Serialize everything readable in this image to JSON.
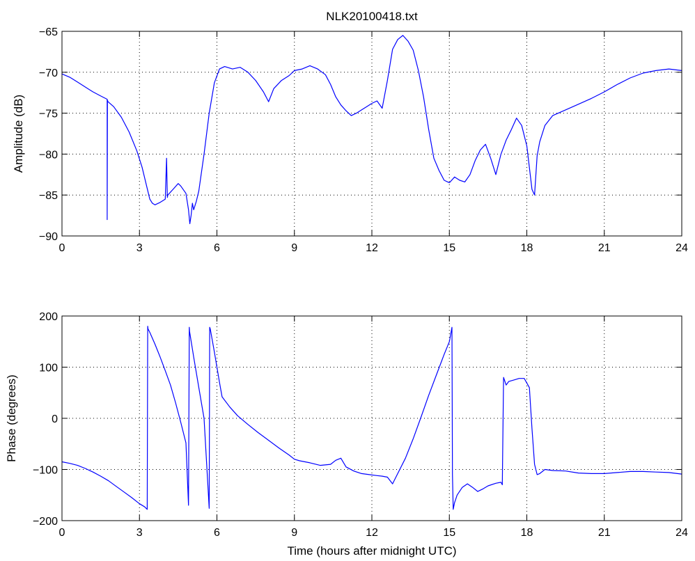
{
  "colors": {
    "series": "#0000ff",
    "axes": "#000000",
    "background": "#ffffff"
  },
  "chart_data": [
    {
      "type": "line",
      "title": "NLK20100418.txt",
      "xlabel": "",
      "ylabel": "Amplitude (dB)",
      "xlim": [
        0,
        24
      ],
      "ylim": [
        -90,
        -65
      ],
      "xticks": [
        0,
        3,
        6,
        9,
        12,
        15,
        18,
        21,
        24
      ],
      "yticks": [
        -90,
        -85,
        -80,
        -75,
        -70,
        -65
      ],
      "grid": true,
      "series": [
        {
          "x": [
            0,
            0.3,
            0.6,
            0.9,
            1.2,
            1.5,
            1.75,
            1.75,
            1.76,
            1.78,
            2.0,
            2.3,
            2.6,
            2.9,
            3.1,
            3.3,
            3.4,
            3.5,
            3.6,
            3.8,
            4.0,
            4.05,
            4.08,
            4.1,
            4.3,
            4.5,
            4.6,
            4.8,
            4.9,
            4.95,
            5.0,
            5.05,
            5.1,
            5.2,
            5.3,
            5.5,
            5.7,
            5.9,
            6.1,
            6.3,
            6.6,
            6.9,
            7.2,
            7.5,
            7.8,
            8.0,
            8.2,
            8.5,
            8.8,
            9.0,
            9.3,
            9.6,
            9.9,
            10.2,
            10.4,
            10.6,
            10.8,
            11.0,
            11.2,
            11.4,
            11.6,
            11.8,
            12.0,
            12.2,
            12.4,
            12.6,
            12.8,
            13.0,
            13.2,
            13.4,
            13.6,
            13.8,
            14.0,
            14.2,
            14.4,
            14.6,
            14.8,
            15.0,
            15.2,
            15.4,
            15.6,
            15.8,
            16.0,
            16.2,
            16.4,
            16.6,
            16.8,
            17.0,
            17.2,
            17.4,
            17.6,
            17.8,
            18.0,
            18.2,
            18.3,
            18.4,
            18.5,
            18.7,
            19.0,
            19.5,
            20.0,
            20.5,
            21.0,
            21.5,
            22.0,
            22.5,
            23.0,
            23.5,
            24.0
          ],
          "y": [
            -70.2,
            -70.6,
            -71.2,
            -71.8,
            -72.4,
            -72.9,
            -73.3,
            -88.0,
            -73.4,
            -73.6,
            -74.2,
            -75.5,
            -77.3,
            -79.6,
            -81.6,
            -84.2,
            -85.5,
            -86.0,
            -86.2,
            -85.9,
            -85.5,
            -80.5,
            -85.3,
            -85.0,
            -84.3,
            -83.6,
            -83.9,
            -84.8,
            -86.8,
            -88.5,
            -87.5,
            -86.0,
            -86.8,
            -85.8,
            -84.5,
            -80.0,
            -75.0,
            -71.3,
            -69.6,
            -69.3,
            -69.6,
            -69.4,
            -70.0,
            -71.0,
            -72.4,
            -73.6,
            -72.0,
            -71.0,
            -70.4,
            -69.8,
            -69.6,
            -69.2,
            -69.6,
            -70.3,
            -71.5,
            -73.0,
            -74.0,
            -74.7,
            -75.3,
            -75.0,
            -74.6,
            -74.2,
            -73.8,
            -73.5,
            -74.4,
            -71.0,
            -67.2,
            -66.0,
            -65.5,
            -66.2,
            -67.3,
            -69.8,
            -73.0,
            -77.0,
            -80.5,
            -82.0,
            -83.2,
            -83.5,
            -82.8,
            -83.2,
            -83.4,
            -82.5,
            -80.8,
            -79.5,
            -78.8,
            -80.5,
            -82.5,
            -80.0,
            -78.3,
            -77.0,
            -75.6,
            -76.5,
            -79.0,
            -84.3,
            -85.0,
            -80.2,
            -78.5,
            -76.5,
            -75.3,
            -74.6,
            -73.9,
            -73.2,
            -72.4,
            -71.5,
            -70.7,
            -70.1,
            -69.8,
            -69.6,
            -69.8
          ]
        }
      ]
    },
    {
      "type": "line",
      "title": "",
      "xlabel": "Time (hours after midnight UTC)",
      "ylabel": "Phase (degrees)",
      "xlim": [
        0,
        24
      ],
      "ylim": [
        -200,
        200
      ],
      "xticks": [
        0,
        3,
        6,
        9,
        12,
        15,
        18,
        21,
        24
      ],
      "yticks": [
        -200,
        -100,
        0,
        100,
        200
      ],
      "grid": true,
      "series": [
        {
          "x": [
            0,
            0.3,
            0.6,
            0.9,
            1.2,
            1.5,
            1.8,
            2.1,
            2.4,
            2.7,
            3.0,
            3.2,
            3.3,
            3.32,
            3.33,
            3.4,
            3.6,
            3.8,
            4.0,
            4.2,
            4.4,
            4.6,
            4.8,
            4.9,
            4.93,
            4.94,
            5.1,
            5.3,
            5.5,
            5.7,
            5.72,
            5.74,
            5.9,
            6.1,
            6.2,
            6.5,
            6.8,
            7.2,
            7.6,
            8.0,
            8.4,
            8.8,
            9.0,
            9.2,
            9.6,
            10.0,
            10.4,
            10.6,
            10.8,
            11.0,
            11.3,
            11.6,
            11.9,
            12.2,
            12.4,
            12.6,
            12.8,
            13.0,
            13.3,
            13.6,
            13.9,
            14.2,
            14.5,
            14.8,
            15.0,
            15.1,
            15.12,
            15.15,
            15.2,
            15.3,
            15.5,
            15.7,
            15.9,
            16.1,
            16.3,
            16.5,
            16.8,
            17.0,
            17.05,
            17.1,
            17.2,
            17.3,
            17.5,
            17.7,
            17.9,
            18.1,
            18.2,
            18.3,
            18.4,
            18.5,
            18.7,
            19.0,
            19.5,
            20.0,
            20.5,
            21.0,
            21.5,
            22.0,
            22.5,
            23.0,
            23.5,
            24.0
          ],
          "y": [
            -85,
            -88,
            -92,
            -98,
            -105,
            -113,
            -122,
            -133,
            -144,
            -155,
            -167,
            -173,
            -178,
            180,
            175,
            168,
            145,
            120,
            93,
            65,
            30,
            -8,
            -48,
            -170,
            178,
            170,
            120,
            60,
            0,
            -176,
            178,
            175,
            130,
            70,
            42,
            22,
            5,
            -12,
            -28,
            -43,
            -58,
            -72,
            -80,
            -83,
            -87,
            -92,
            -90,
            -82,
            -78,
            -95,
            -103,
            -108,
            -110,
            -112,
            -113,
            -115,
            -128,
            -108,
            -78,
            -40,
            2,
            45,
            85,
            125,
            150,
            178,
            -110,
            -178,
            -165,
            -150,
            -135,
            -128,
            -135,
            -143,
            -138,
            -132,
            -127,
            -125,
            -130,
            80,
            65,
            72,
            75,
            78,
            78,
            60,
            -20,
            -90,
            -110,
            -108,
            -100,
            -102,
            -103,
            -107,
            -108,
            -108,
            -106,
            -104,
            -104,
            -105,
            -106,
            -109
          ]
        }
      ]
    }
  ]
}
